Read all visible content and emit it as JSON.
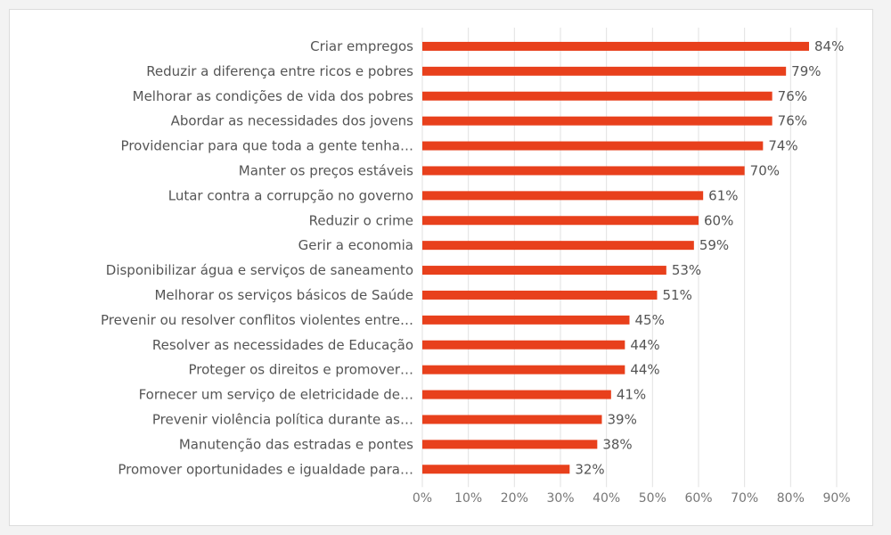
{
  "chart_data": {
    "type": "bar",
    "orientation": "horizontal",
    "categories": [
      "Criar empregos",
      "Reduzir a diferença entre ricos e pobres",
      "Melhorar as condições de vida dos pobres",
      "Abordar as necessidades dos jovens",
      "Providenciar para que toda a gente tenha…",
      "Manter  os preços estáveis",
      "Lutar contra a corrupção no governo",
      "Reduzir o crime",
      "Gerir  a economia",
      "Disponibilizar água e serviços de saneamento",
      "Melhorar os serviços básicos de Saúde",
      "Prevenir ou resolver conflitos violentes entre…",
      "Resolver as necessidades de Educação",
      "Proteger os direitos e promover…",
      "Fornecer um serviço de eletricidade de…",
      "Prevenir violência política durante as…",
      "Manutenção das estradas e pontes",
      "Promover oportunidades e igualdade para…"
    ],
    "values": [
      84,
      79,
      76,
      76,
      74,
      70,
      61,
      60,
      59,
      53,
      51,
      45,
      44,
      44,
      41,
      39,
      38,
      32
    ],
    "value_labels": [
      "84%",
      "79%",
      "76%",
      "76%",
      "74%",
      "70%",
      "61%",
      "60%",
      "59%",
      "53%",
      "51%",
      "45%",
      "44%",
      "44%",
      "41%",
      "39%",
      "38%",
      "32%"
    ],
    "xlim": [
      0,
      90
    ],
    "x_ticks": [
      "0%",
      "10%",
      "20%",
      "30%",
      "40%",
      "50%",
      "60%",
      "70%",
      "80%",
      "90%"
    ],
    "grid": true,
    "legend": false,
    "bar_color": "#e8401c",
    "grid_color": "#e2e2e2"
  }
}
